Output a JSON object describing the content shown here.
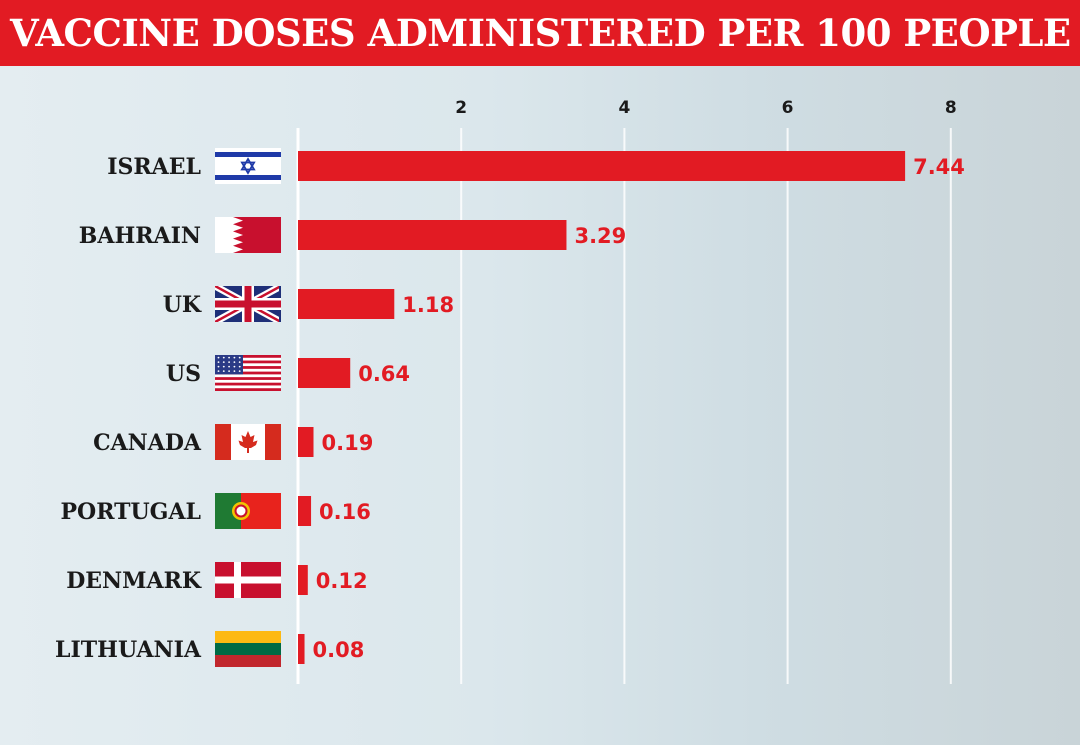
{
  "title": "VACCINE DOSES ADMINISTERED PER 100 PEOPLE",
  "colors": {
    "accent": "#e21b23",
    "text": "#1a1a1a",
    "title_text": "#ffffff"
  },
  "chart_data": {
    "type": "bar",
    "orientation": "horizontal",
    "title": "VACCINE DOSES ADMINISTERED PER 100 PEOPLE",
    "categories": [
      "ISRAEL",
      "BAHRAIN",
      "UK",
      "US",
      "CANADA",
      "PORTUGAL",
      "DENMARK",
      "LITHUANIA"
    ],
    "values": [
      7.44,
      3.29,
      1.18,
      0.64,
      0.19,
      0.16,
      0.12,
      0.08
    ],
    "value_labels": [
      "7.44",
      "3.29",
      "1.18",
      "0.64",
      "0.19",
      "0.16",
      "0.12",
      "0.08"
    ],
    "flags": [
      "israel-flag-icon",
      "bahrain-flag-icon",
      "uk-flag-icon",
      "us-flag-icon",
      "canada-flag-icon",
      "portugal-flag-icon",
      "denmark-flag-icon",
      "lithuania-flag-icon"
    ],
    "xticks": [
      2,
      4,
      6,
      8
    ],
    "xtick_labels": [
      "2",
      "4",
      "6",
      "8"
    ],
    "xlim": [
      0,
      8
    ],
    "xaxis_position": "top",
    "grid": true,
    "bar_color": "#e21b23",
    "xlabel": "",
    "ylabel": ""
  }
}
